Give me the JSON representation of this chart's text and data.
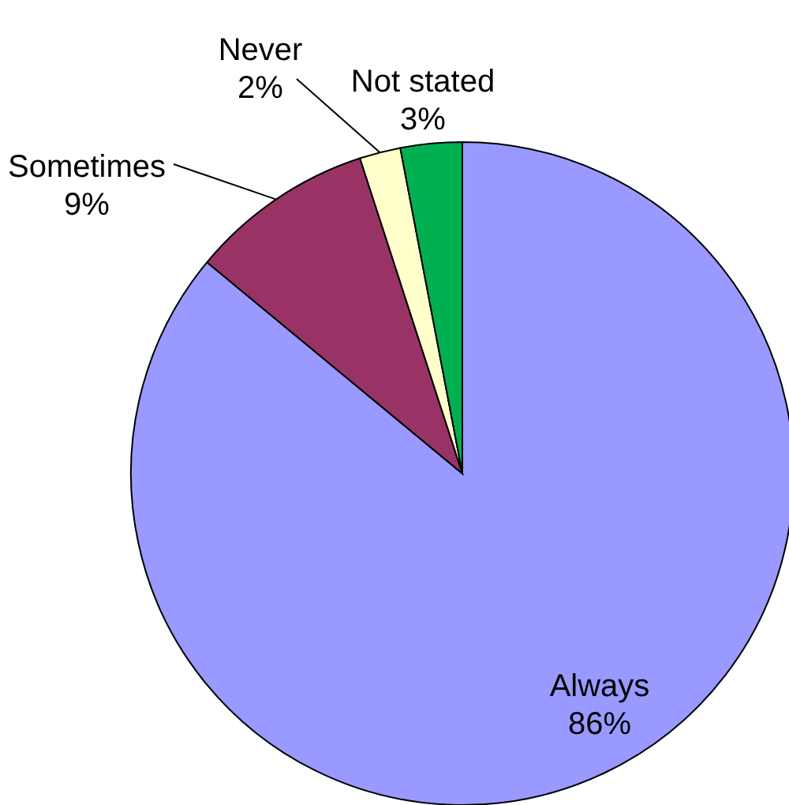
{
  "chart_data": {
    "type": "pie",
    "categories": [
      "Always",
      "Sometimes",
      "Never",
      "Not stated"
    ],
    "values": [
      86,
      9,
      2,
      3
    ],
    "value_labels": [
      "86%",
      "9%",
      "2%",
      "3%"
    ],
    "colors": [
      "#9999ff",
      "#993366",
      "#ffffcc",
      "#00b050"
    ]
  }
}
